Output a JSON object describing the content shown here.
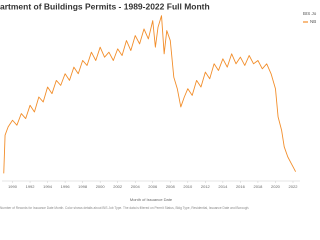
{
  "chart_data": {
    "type": "line",
    "title": "artment of Buildings Permits - 1989-2022 Full Month",
    "x_label": "Month of Issuance Date",
    "footnote": "Number of Records for Issuance Date Month. Color shows details about BIS Job Type. The data is filtered on Permit Status, Bldg Type, Residential, Issuance Date and Borough.",
    "legend_title": "BIS Jo",
    "legend_position": "right",
    "x": [
      1989.0,
      1989.15,
      1989.5,
      1990,
      1990.5,
      1991,
      1991.5,
      1992,
      1992.5,
      1993,
      1993.5,
      1994,
      1994.5,
      1995,
      1995.5,
      1996,
      1996.5,
      1997,
      1997.5,
      1998,
      1998.5,
      1999,
      1999.5,
      2000,
      2000.5,
      2001,
      2001.5,
      2002,
      2002.5,
      2003,
      2003.5,
      2004,
      2004.5,
      2005,
      2005.5,
      2006,
      2006.3,
      2006.6,
      2007,
      2007.3,
      2007.6,
      2008,
      2008.4,
      2008.8,
      2009.2,
      2009.6,
      2010,
      2010.5,
      2011,
      2011.5,
      2012,
      2012.5,
      2013,
      2013.5,
      2014,
      2014.5,
      2015,
      2015.5,
      2016,
      2016.5,
      2017,
      2017.5,
      2018,
      2018.5,
      2019,
      2019.5,
      2020,
      2020.3,
      2020.7,
      2021,
      2021.4,
      2021.8,
      2022,
      2022.3
    ],
    "series": [
      {
        "name": "NB",
        "color": "#f28e2b",
        "values": [
          4,
          27,
          32,
          36,
          33,
          40,
          37,
          45,
          41,
          50,
          47,
          56,
          52,
          60,
          57,
          64,
          60,
          68,
          64,
          72,
          69,
          77,
          72,
          80,
          74,
          77,
          72,
          79,
          75,
          84,
          78,
          87,
          82,
          91,
          85,
          96,
          80,
          92,
          99,
          76,
          90,
          84,
          62,
          55,
          44,
          50,
          55,
          51,
          60,
          56,
          65,
          61,
          70,
          66,
          73,
          68,
          76,
          70,
          74,
          69,
          75,
          70,
          72,
          67,
          70,
          64,
          55,
          38,
          30,
          20,
          14,
          10,
          8,
          5
        ]
      }
    ],
    "xlim": [
      1988.8,
      2022.8
    ],
    "ylim": [
      0,
      100
    ],
    "xticks": [
      1990,
      1992,
      1994,
      1996,
      1998,
      2000,
      2002,
      2004,
      2006,
      2008,
      2010,
      2012,
      2014,
      2016,
      2018,
      2020,
      2022
    ],
    "grid": false
  }
}
